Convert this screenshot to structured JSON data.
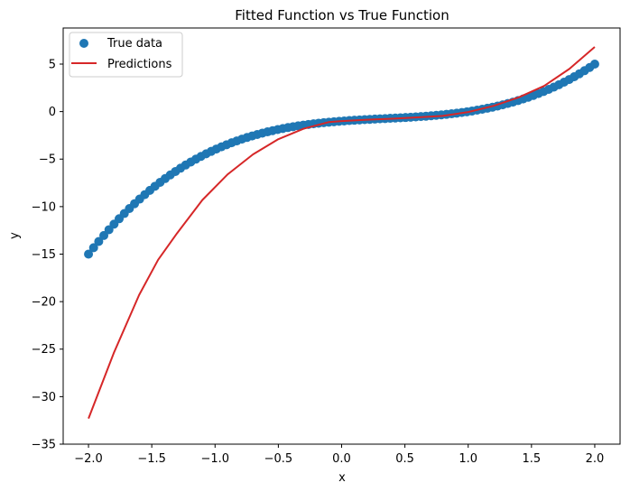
{
  "chart_data": {
    "type": "scatter",
    "title": "Fitted Function vs True Function",
    "xlabel": "x",
    "ylabel": "y",
    "xlim": [
      -2.2,
      2.2
    ],
    "ylim": [
      -35,
      8.8
    ],
    "x_ticks": [
      -2.0,
      -1.5,
      -1.0,
      -0.5,
      0.0,
      0.5,
      1.0,
      1.5,
      2.0
    ],
    "x_tick_labels": [
      "−2.0",
      "−1.5",
      "−1.0",
      "−0.5",
      "0.0",
      "0.5",
      "1.0",
      "1.5",
      "2.0"
    ],
    "y_ticks": [
      -35,
      -30,
      -25,
      -20,
      -15,
      -10,
      -5,
      0,
      5
    ],
    "y_tick_labels": [
      "−35",
      "−30",
      "−25",
      "−20",
      "−15",
      "−10",
      "−5",
      "0",
      "5"
    ],
    "grid": false,
    "legend_position": "top-left",
    "series": [
      {
        "name": "True data",
        "kind": "scatter",
        "color": "#1f77b4",
        "function": "x^3 - x^2 + x - 1",
        "x_range": [
          -2.0,
          2.0
        ],
        "n_points": 100
      },
      {
        "name": "Predictions",
        "kind": "line",
        "color": "#d62728",
        "points": [
          [
            -2.0,
            -32.3
          ],
          [
            -1.8,
            -25.4
          ],
          [
            -1.6,
            -19.3
          ],
          [
            -1.45,
            -15.6
          ],
          [
            -1.3,
            -12.8
          ],
          [
            -1.1,
            -9.3
          ],
          [
            -0.9,
            -6.6
          ],
          [
            -0.7,
            -4.5
          ],
          [
            -0.5,
            -2.9
          ],
          [
            -0.3,
            -1.8
          ],
          [
            -0.1,
            -1.1
          ],
          [
            0.0,
            -1.0
          ],
          [
            0.2,
            -0.85
          ],
          [
            0.4,
            -0.75
          ],
          [
            0.6,
            -0.6
          ],
          [
            0.8,
            -0.45
          ],
          [
            1.0,
            -0.05
          ],
          [
            1.2,
            0.6
          ],
          [
            1.4,
            1.5
          ],
          [
            1.6,
            2.7
          ],
          [
            1.8,
            4.5
          ],
          [
            2.0,
            6.8
          ]
        ]
      }
    ]
  }
}
